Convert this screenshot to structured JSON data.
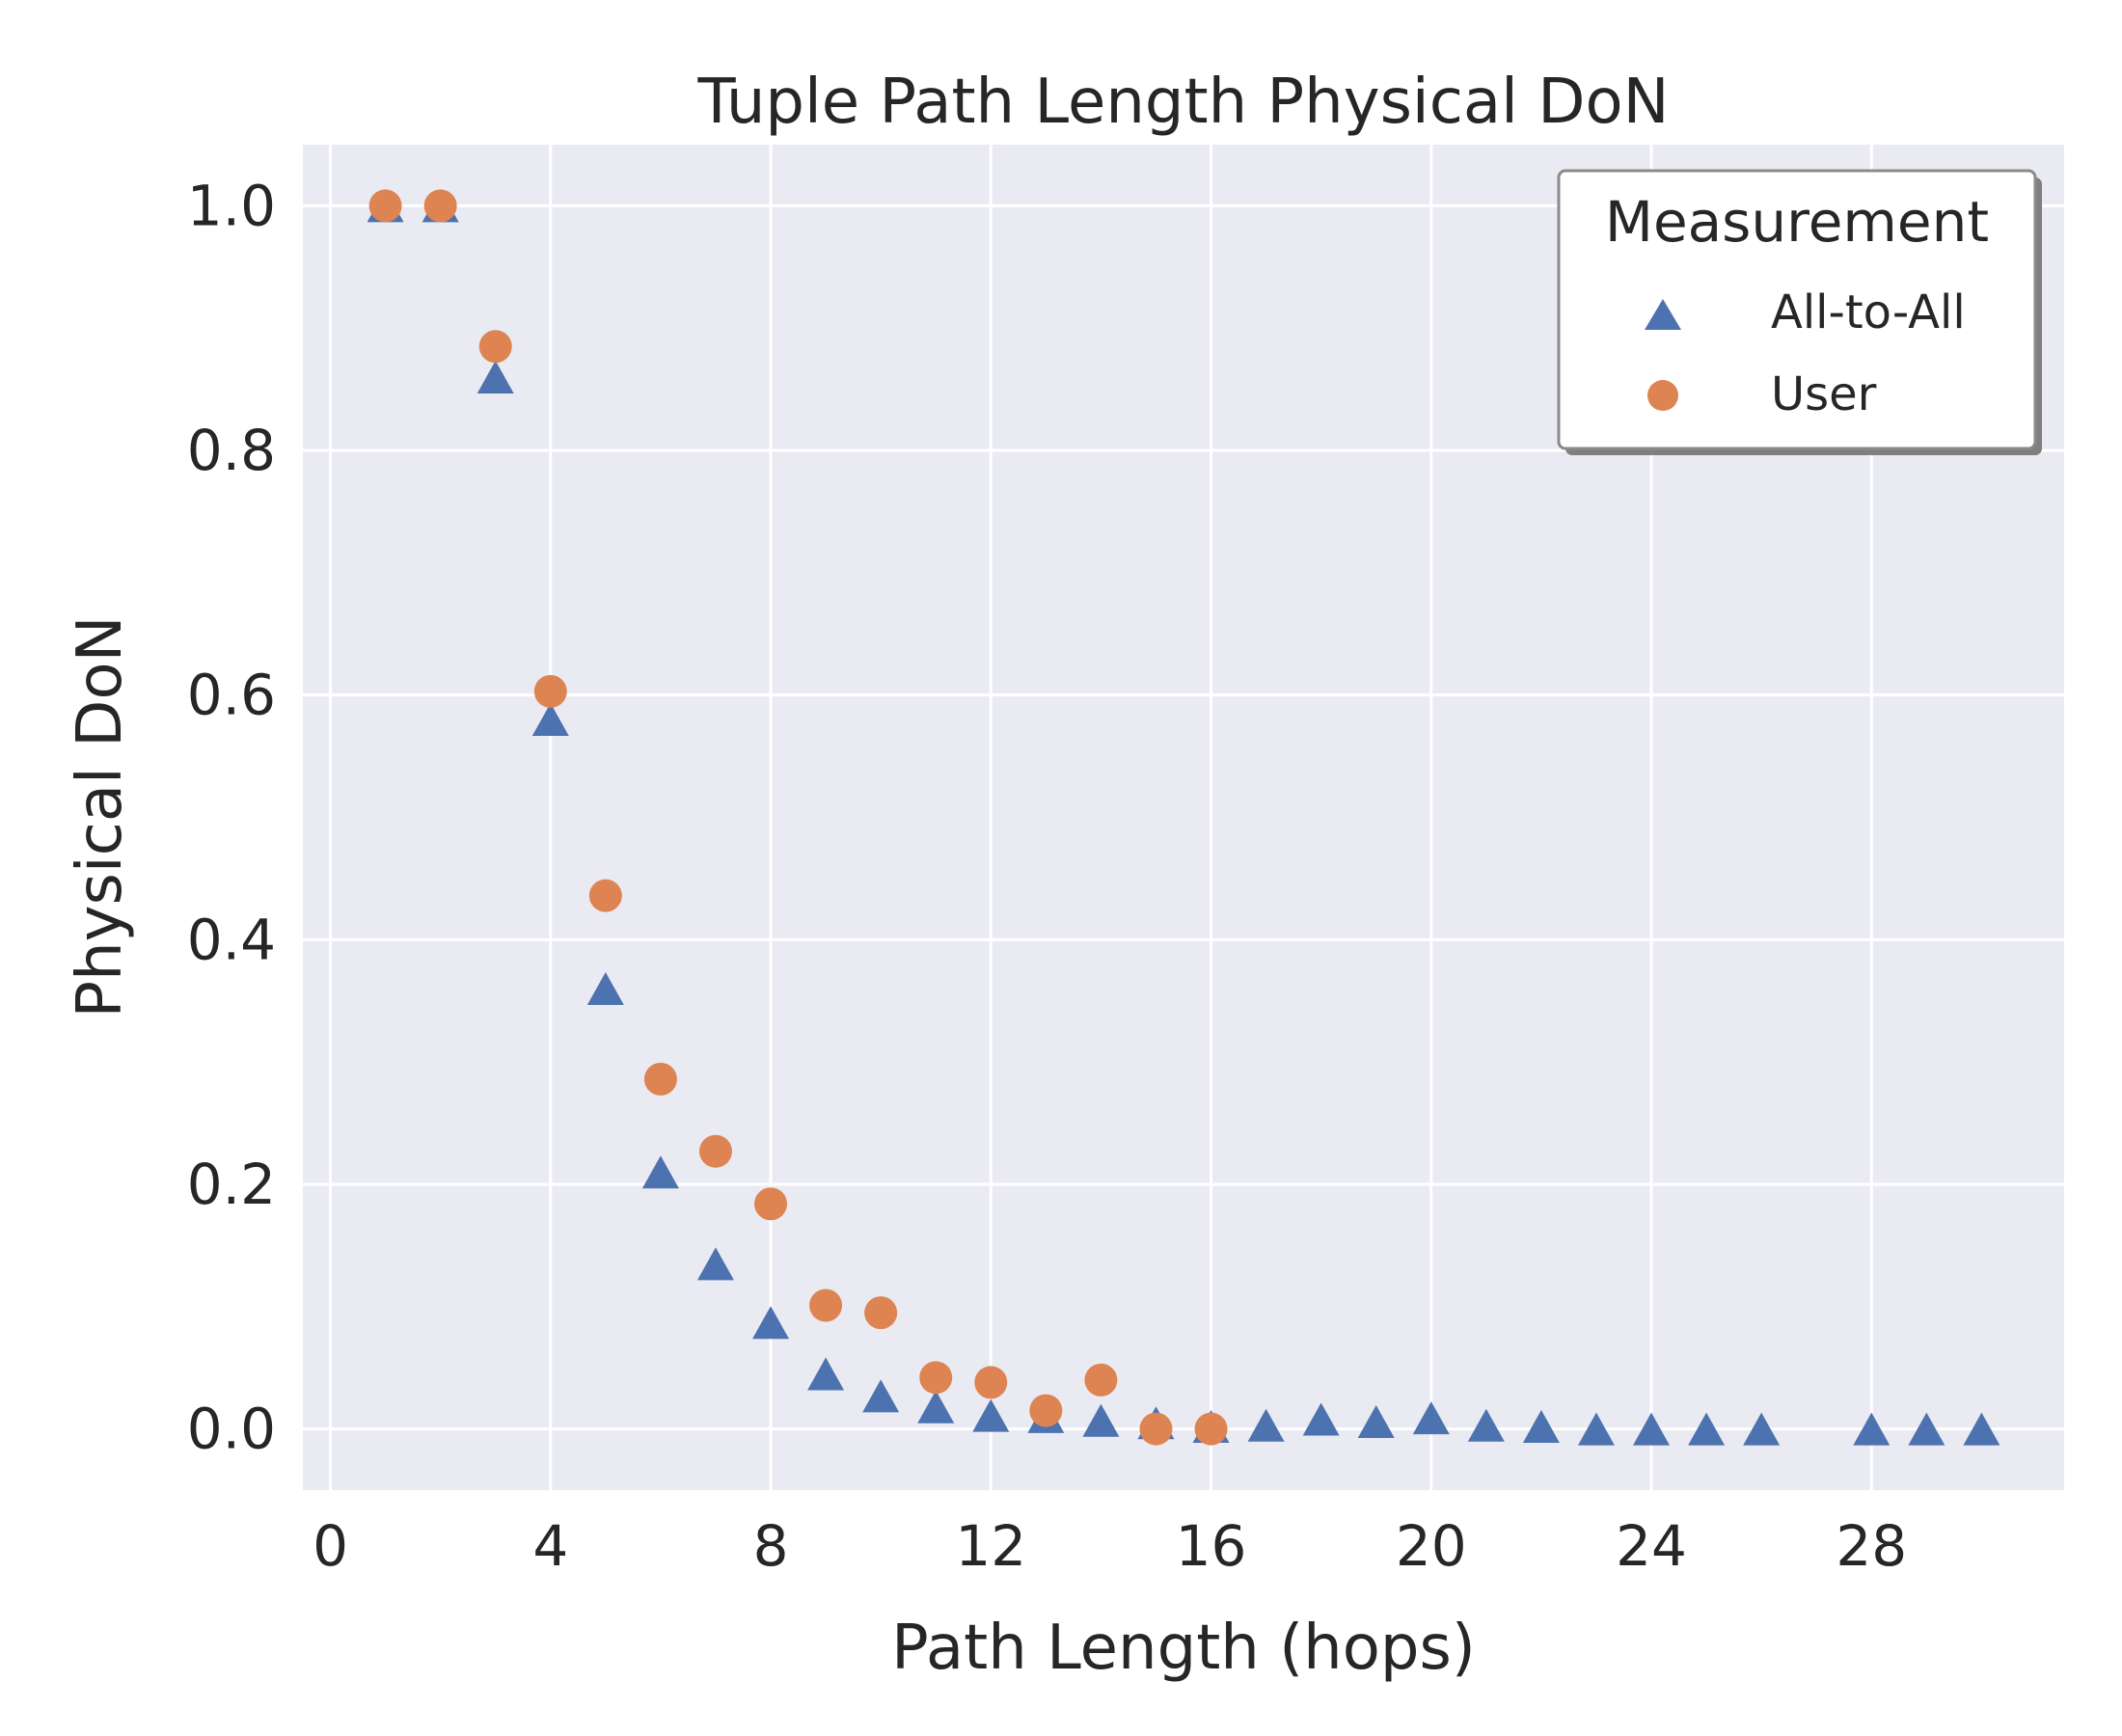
{
  "chart_data": {
    "type": "scatter",
    "title": "Tuple Path Length Physical DoN",
    "xlabel": "Path Length (hops)",
    "ylabel": "Physical DoN",
    "xlim": [
      -0.5,
      31.5
    ],
    "ylim": [
      -0.05,
      1.05
    ],
    "xticks": [
      0,
      4,
      8,
      12,
      16,
      20,
      24,
      28
    ],
    "yticks": [
      0.0,
      0.2,
      0.4,
      0.6,
      0.8,
      1.0
    ],
    "xtick_labels": [
      "0",
      "4",
      "8",
      "12",
      "16",
      "20",
      "24",
      "28"
    ],
    "ytick_labels": [
      "0.0",
      "0.2",
      "0.4",
      "0.6",
      "0.8",
      "1.0"
    ],
    "grid": true,
    "legend": {
      "title": "Measurement",
      "position": "top-right"
    },
    "series": [
      {
        "name": "All-to-All",
        "marker": "triangle",
        "color": "#4c72b0",
        "x": [
          1,
          2,
          3,
          4,
          5,
          6,
          7,
          8,
          9,
          10,
          11,
          12,
          13,
          14,
          15,
          16,
          17,
          18,
          19,
          20,
          21,
          22,
          23,
          24,
          25,
          26,
          28,
          29,
          30
        ],
        "y": [
          1.0,
          1.0,
          0.86,
          0.58,
          0.36,
          0.21,
          0.135,
          0.087,
          0.045,
          0.027,
          0.018,
          0.011,
          0.01,
          0.007,
          0.005,
          0.002,
          0.003,
          0.008,
          0.006,
          0.009,
          0.003,
          0.002,
          0.0,
          0.0,
          0.0,
          0.0,
          0.0,
          0.0,
          0.0
        ]
      },
      {
        "name": "User",
        "marker": "circle",
        "color": "#dd8452",
        "x": [
          1,
          2,
          3,
          4,
          5,
          6,
          7,
          8,
          9,
          10,
          11,
          12,
          13,
          14,
          15,
          16
        ],
        "y": [
          1.0,
          1.0,
          0.885,
          0.603,
          0.436,
          0.286,
          0.227,
          0.184,
          0.101,
          0.095,
          0.042,
          0.038,
          0.015,
          0.04,
          0.0,
          0.0
        ]
      }
    ]
  }
}
